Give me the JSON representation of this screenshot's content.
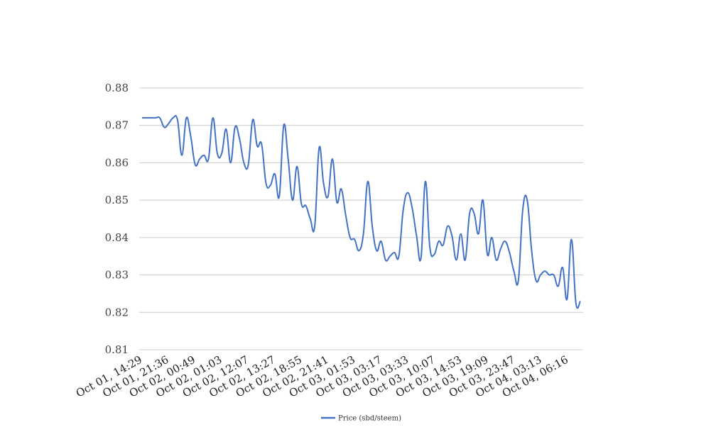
{
  "chart_data": {
    "type": "line",
    "title": "",
    "xlabel": "",
    "ylabel": "",
    "ylim": [
      0.81,
      0.88
    ],
    "y_ticks": [
      "0.81",
      "0.82",
      "0.83",
      "0.84",
      "0.85",
      "0.86",
      "0.87",
      "0.88"
    ],
    "x_ticks": [
      "Oct 01, 14:29",
      "Oct 01, 21:36",
      "Oct 02, 00:49",
      "Oct 02, 01:03",
      "Oct 02, 12:07",
      "Oct 02, 13:27",
      "Oct 02, 18:55",
      "Oct 02, 21:41",
      "Oct 03, 01:53",
      "Oct 03, 03:17",
      "Oct 03, 03:33",
      "Oct 03, 10:07",
      "Oct 03, 14:53",
      "Oct 03, 19:09",
      "Oct 03, 23:47",
      "Oct 04, 03:13",
      "Oct 04, 06:16"
    ],
    "grid": true,
    "legend_position": "bottom",
    "series": [
      {
        "name": "Price (sbd/steem)",
        "color": "#4472c4",
        "values": [
          0.872,
          0.872,
          0.872,
          0.872,
          0.872,
          0.8695,
          0.8705,
          0.872,
          0.8715,
          0.862,
          0.872,
          0.867,
          0.8595,
          0.861,
          0.862,
          0.861,
          0.872,
          0.8625,
          0.8625,
          0.869,
          0.86,
          0.8695,
          0.8665,
          0.86,
          0.8595,
          0.8715,
          0.8645,
          0.865,
          0.8545,
          0.854,
          0.857,
          0.851,
          0.87,
          0.861,
          0.85,
          0.859,
          0.849,
          0.8485,
          0.845,
          0.843,
          0.864,
          0.8545,
          0.851,
          0.861,
          0.8495,
          0.853,
          0.846,
          0.84,
          0.8395,
          0.8365,
          0.841,
          0.855,
          0.843,
          0.8365,
          0.839,
          0.834,
          0.835,
          0.836,
          0.835,
          0.8475,
          0.852,
          0.848,
          0.8405,
          0.8345,
          0.855,
          0.8375,
          0.8355,
          0.839,
          0.838,
          0.843,
          0.8405,
          0.834,
          0.841,
          0.834,
          0.8465,
          0.8465,
          0.841,
          0.85,
          0.8355,
          0.84,
          0.834,
          0.837,
          0.839,
          0.836,
          0.831,
          0.8285,
          0.8475,
          0.85,
          0.8365,
          0.8285,
          0.83,
          0.831,
          0.83,
          0.83,
          0.827,
          0.832,
          0.8235,
          0.8395,
          0.8225,
          0.823
        ]
      }
    ]
  }
}
